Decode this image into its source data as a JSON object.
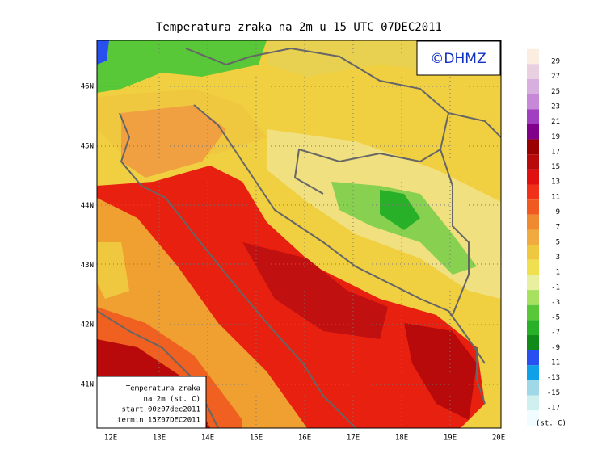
{
  "title": "Temperatura zraka na 2m u 15 UTC 07DEC2011",
  "watermark": "©DHMZ",
  "info_box": [
    "Temperatura zraka",
    "na 2m (st. C)",
    "start 00z07dec2011",
    "termin 15Z07DEC2011"
  ],
  "lon_labels": [
    "12E",
    "13E",
    "14E",
    "15E",
    "16E",
    "17E",
    "18E",
    "19E",
    "20E"
  ],
  "lat_labels": [
    "46N",
    "45N",
    "44N",
    "43N",
    "42N",
    "41N"
  ],
  "legend": {
    "unit": "(st. C)",
    "labels": [
      29,
      27,
      25,
      23,
      21,
      19,
      17,
      15,
      13,
      11,
      9,
      7,
      5,
      3,
      1,
      -1,
      -3,
      -5,
      -7,
      -9,
      -11,
      -13,
      -15,
      -17
    ],
    "colors": [
      "#fbeee0",
      "#e8d0e0",
      "#d8b0e0",
      "#c888d8",
      "#a040c0",
      "#80008a",
      "#9a0000",
      "#b80a0a",
      "#e01010",
      "#f03018",
      "#f05a20",
      "#f08a30",
      "#f0aa40",
      "#f0c840",
      "#f0e050",
      "#e8f0a0",
      "#a8e060",
      "#58c838",
      "#28b028",
      "#108a18",
      "#2850f0",
      "#10a0e8",
      "#a0d8e8",
      "#d0f0f0",
      "#f0fcff"
    ]
  }
}
